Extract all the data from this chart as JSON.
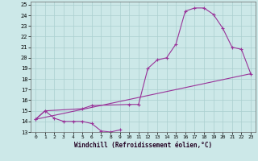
{
  "background_color": "#cce8e8",
  "grid_color": "#aacfcf",
  "line_color": "#993399",
  "xlabel": "Windchill (Refroidissement éolien,°C)",
  "xlim": [
    -0.5,
    23.5
  ],
  "ylim": [
    13,
    25.3
  ],
  "xticks": [
    0,
    1,
    2,
    3,
    4,
    5,
    6,
    7,
    8,
    9,
    10,
    11,
    12,
    13,
    14,
    15,
    16,
    17,
    18,
    19,
    20,
    21,
    22,
    23
  ],
  "yticks": [
    13,
    14,
    15,
    16,
    17,
    18,
    19,
    20,
    21,
    22,
    23,
    24,
    25
  ],
  "series_dip": {
    "x": [
      0,
      1,
      2,
      3,
      4,
      5,
      6,
      7,
      8,
      9
    ],
    "y": [
      14.2,
      15.0,
      14.3,
      14.0,
      14.0,
      14.0,
      13.8,
      13.1,
      13.0,
      13.2
    ]
  },
  "series_main": {
    "x": [
      0,
      1,
      5,
      6,
      10,
      11,
      12,
      13,
      14,
      15,
      16,
      17,
      18,
      19,
      20,
      21,
      22,
      23
    ],
    "y": [
      14.2,
      15.0,
      15.2,
      15.5,
      15.6,
      15.6,
      19.0,
      19.8,
      20.0,
      21.3,
      24.4,
      24.7,
      24.7,
      24.1,
      22.8,
      21.0,
      20.8,
      18.5
    ]
  },
  "series_straight": {
    "x": [
      0,
      23
    ],
    "y": [
      14.2,
      18.5
    ]
  }
}
